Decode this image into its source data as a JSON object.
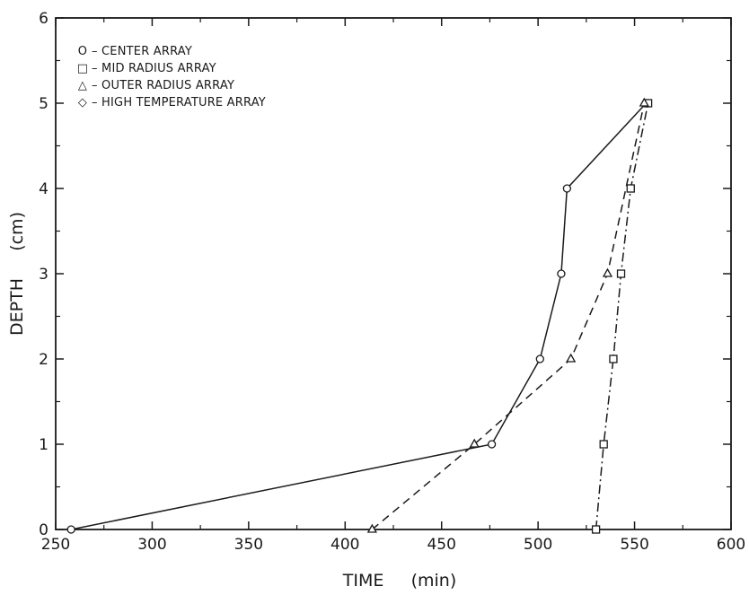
{
  "chart_data": {
    "type": "line",
    "title": "",
    "xlabel": "TIME     (min)",
    "ylabel": "DEPTH     (cm)",
    "xlim": [
      250,
      600
    ],
    "ylim": [
      0,
      6
    ],
    "xticks": [
      250,
      300,
      350,
      400,
      450,
      500,
      550,
      600
    ],
    "yticks": [
      0,
      1,
      2,
      3,
      4,
      5,
      6
    ],
    "grid": false,
    "legend_position": "top-left",
    "series": [
      {
        "name": "CENTER ARRAY",
        "marker": "circle",
        "line_style": "solid",
        "x": [
          258,
          476,
          501,
          512,
          515,
          556
        ],
        "y": [
          0,
          1,
          2,
          3,
          4,
          5
        ]
      },
      {
        "name": "MID RADIUS ARRAY",
        "marker": "square",
        "line_style": "dashdot",
        "x": [
          530,
          534,
          539,
          543,
          548,
          557
        ],
        "y": [
          0,
          1,
          2,
          3,
          4,
          5
        ]
      },
      {
        "name": "OUTER RADIUS ARRAY",
        "marker": "triangle",
        "line_style": "dashed",
        "x": [
          414,
          467,
          517,
          536,
          555
        ],
        "y": [
          0,
          1,
          2,
          3,
          5
        ]
      },
      {
        "name": "HIGH TEMPERATURE ARRAY",
        "marker": "diamond",
        "line_style": "none",
        "x": [],
        "y": []
      }
    ],
    "legend_entries": [
      {
        "symbol": "O",
        "text": "– CENTER ARRAY"
      },
      {
        "symbol": "□",
        "text": "– MID RADIUS ARRAY"
      },
      {
        "symbol": "△",
        "text": "– OUTER RADIUS ARRAY"
      },
      {
        "symbol": "◇",
        "text": "– HIGH TEMPERATURE ARRAY"
      }
    ]
  }
}
